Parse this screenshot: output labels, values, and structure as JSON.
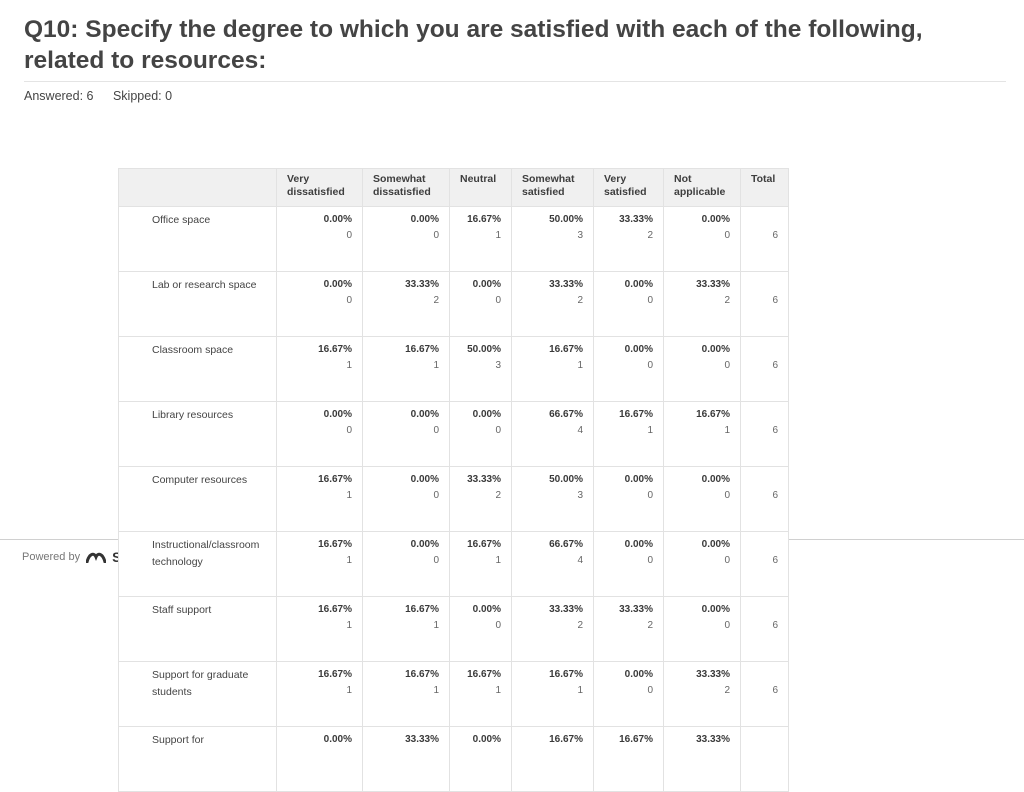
{
  "question": {
    "title": "Q10: Specify the degree to which you are satisfied with each of the following, related to resources:",
    "answered": "Answered: 6",
    "skipped": "Skipped: 0"
  },
  "table": {
    "columns": [
      "Very dissatisfied",
      "Somewhat dissatisfied",
      "Neutral",
      "Somewhat satisfied",
      "Very satisfied",
      "Not applicable",
      "Total"
    ],
    "rows": [
      {
        "label": "Office space",
        "cells": [
          {
            "pct": "0.00%",
            "n": "0"
          },
          {
            "pct": "0.00%",
            "n": "0"
          },
          {
            "pct": "16.67%",
            "n": "1"
          },
          {
            "pct": "50.00%",
            "n": "3"
          },
          {
            "pct": "33.33%",
            "n": "2"
          },
          {
            "pct": "0.00%",
            "n": "0"
          }
        ],
        "total": "6"
      },
      {
        "label": "Lab or research space",
        "cells": [
          {
            "pct": "0.00%",
            "n": "0"
          },
          {
            "pct": "33.33%",
            "n": "2"
          },
          {
            "pct": "0.00%",
            "n": "0"
          },
          {
            "pct": "33.33%",
            "n": "2"
          },
          {
            "pct": "0.00%",
            "n": "0"
          },
          {
            "pct": "33.33%",
            "n": "2"
          }
        ],
        "total": "6"
      },
      {
        "label": "Classroom space",
        "cells": [
          {
            "pct": "16.67%",
            "n": "1"
          },
          {
            "pct": "16.67%",
            "n": "1"
          },
          {
            "pct": "50.00%",
            "n": "3"
          },
          {
            "pct": "16.67%",
            "n": "1"
          },
          {
            "pct": "0.00%",
            "n": "0"
          },
          {
            "pct": "0.00%",
            "n": "0"
          }
        ],
        "total": "6"
      },
      {
        "label": "Library resources",
        "cells": [
          {
            "pct": "0.00%",
            "n": "0"
          },
          {
            "pct": "0.00%",
            "n": "0"
          },
          {
            "pct": "0.00%",
            "n": "0"
          },
          {
            "pct": "66.67%",
            "n": "4"
          },
          {
            "pct": "16.67%",
            "n": "1"
          },
          {
            "pct": "16.67%",
            "n": "1"
          }
        ],
        "total": "6"
      },
      {
        "label": "Computer resources",
        "cells": [
          {
            "pct": "16.67%",
            "n": "1"
          },
          {
            "pct": "0.00%",
            "n": "0"
          },
          {
            "pct": "33.33%",
            "n": "2"
          },
          {
            "pct": "50.00%",
            "n": "3"
          },
          {
            "pct": "0.00%",
            "n": "0"
          },
          {
            "pct": "0.00%",
            "n": "0"
          }
        ],
        "total": "6"
      },
      {
        "label": "Instructional/classroom technology",
        "cells": [
          {
            "pct": "16.67%",
            "n": "1"
          },
          {
            "pct": "0.00%",
            "n": "0"
          },
          {
            "pct": "16.67%",
            "n": "1"
          },
          {
            "pct": "66.67%",
            "n": "4"
          },
          {
            "pct": "0.00%",
            "n": "0"
          },
          {
            "pct": "0.00%",
            "n": "0"
          }
        ],
        "total": "6"
      },
      {
        "label": "Staff support",
        "cells": [
          {
            "pct": "16.67%",
            "n": "1"
          },
          {
            "pct": "16.67%",
            "n": "1"
          },
          {
            "pct": "0.00%",
            "n": "0"
          },
          {
            "pct": "33.33%",
            "n": "2"
          },
          {
            "pct": "33.33%",
            "n": "2"
          },
          {
            "pct": "0.00%",
            "n": "0"
          }
        ],
        "total": "6"
      },
      {
        "label": "Support for graduate students",
        "cells": [
          {
            "pct": "16.67%",
            "n": "1"
          },
          {
            "pct": "16.67%",
            "n": "1"
          },
          {
            "pct": "16.67%",
            "n": "1"
          },
          {
            "pct": "16.67%",
            "n": "1"
          },
          {
            "pct": "0.00%",
            "n": "0"
          },
          {
            "pct": "33.33%",
            "n": "2"
          }
        ],
        "total": "6"
      },
      {
        "label": "Support for",
        "cells": [
          {
            "pct": "0.00%",
            "n": ""
          },
          {
            "pct": "33.33%",
            "n": ""
          },
          {
            "pct": "0.00%",
            "n": ""
          },
          {
            "pct": "16.67%",
            "n": ""
          },
          {
            "pct": "16.67%",
            "n": ""
          },
          {
            "pct": "33.33%",
            "n": ""
          }
        ],
        "total": ""
      }
    ]
  },
  "footer": {
    "powered_by": "Powered by",
    "logo_text": "S",
    "logo_icon": "surveymonkey-logo-icon",
    "logo_color": "#333333"
  }
}
